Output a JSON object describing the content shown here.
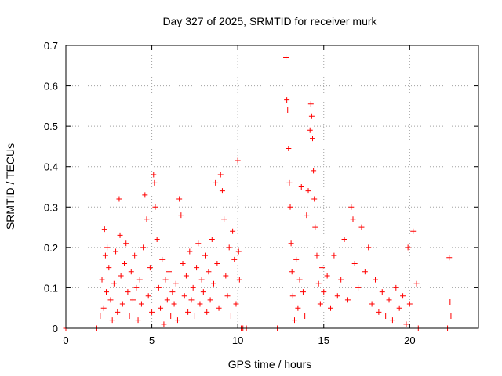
{
  "chart_data": {
    "type": "scatter",
    "title": "Day 327 of 2025, SRMTID for receiver murk",
    "xlabel": "GPS time / hours",
    "ylabel": "SRMTID / TECUs",
    "xlim": [
      0,
      24
    ],
    "ylim": [
      0,
      0.7
    ],
    "xticks": [
      0,
      5,
      10,
      15,
      20
    ],
    "yticks": [
      0,
      0.1,
      0.2,
      0.3,
      0.4,
      0.5,
      0.6,
      0.7
    ],
    "xtick_labels": [
      "0",
      "5",
      "10",
      "15",
      "20"
    ],
    "ytick_labels": [
      "0",
      "0.1",
      "0.2",
      "0.3",
      "0.4",
      "0.5",
      "0.6",
      "0.7"
    ],
    "grid": true,
    "marker": "+",
    "color": "#ff0000",
    "series": [
      {
        "name": "SRMTID",
        "points": [
          [
            0.0,
            0.0
          ],
          [
            1.8,
            0.0
          ],
          [
            2.0,
            0.03
          ],
          [
            2.1,
            0.12
          ],
          [
            2.2,
            0.05
          ],
          [
            2.25,
            0.245
          ],
          [
            2.3,
            0.18
          ],
          [
            2.35,
            0.09
          ],
          [
            2.4,
            0.2
          ],
          [
            2.5,
            0.15
          ],
          [
            2.6,
            0.07
          ],
          [
            2.7,
            0.02
          ],
          [
            2.8,
            0.11
          ],
          [
            2.9,
            0.19
          ],
          [
            3.0,
            0.04
          ],
          [
            3.1,
            0.32
          ],
          [
            3.15,
            0.23
          ],
          [
            3.2,
            0.13
          ],
          [
            3.3,
            0.06
          ],
          [
            3.4,
            0.16
          ],
          [
            3.5,
            0.21
          ],
          [
            3.6,
            0.09
          ],
          [
            3.7,
            0.03
          ],
          [
            3.8,
            0.14
          ],
          [
            3.9,
            0.07
          ],
          [
            4.0,
            0.18
          ],
          [
            4.1,
            0.1
          ],
          [
            4.2,
            0.02
          ],
          [
            4.3,
            0.12
          ],
          [
            4.4,
            0.06
          ],
          [
            4.5,
            0.2
          ],
          [
            4.6,
            0.33
          ],
          [
            4.7,
            0.27
          ],
          [
            4.8,
            0.08
          ],
          [
            4.9,
            0.15
          ],
          [
            5.0,
            0.04
          ],
          [
            5.1,
            0.38
          ],
          [
            5.15,
            0.36
          ],
          [
            5.2,
            0.3
          ],
          [
            5.3,
            0.22
          ],
          [
            5.4,
            0.1
          ],
          [
            5.5,
            0.05
          ],
          [
            5.6,
            0.17
          ],
          [
            5.7,
            0.01
          ],
          [
            5.8,
            0.12
          ],
          [
            5.9,
            0.07
          ],
          [
            6.0,
            0.14
          ],
          [
            6.1,
            0.03
          ],
          [
            6.2,
            0.09
          ],
          [
            6.3,
            0.06
          ],
          [
            6.4,
            0.11
          ],
          [
            6.5,
            0.02
          ],
          [
            6.6,
            0.32
          ],
          [
            6.7,
            0.28
          ],
          [
            6.8,
            0.16
          ],
          [
            6.9,
            0.08
          ],
          [
            7.0,
            0.13
          ],
          [
            7.1,
            0.04
          ],
          [
            7.2,
            0.19
          ],
          [
            7.3,
            0.07
          ],
          [
            7.4,
            0.1
          ],
          [
            7.5,
            0.03
          ],
          [
            7.6,
            0.15
          ],
          [
            7.7,
            0.21
          ],
          [
            7.8,
            0.06
          ],
          [
            7.9,
            0.12
          ],
          [
            8.0,
            0.09
          ],
          [
            8.1,
            0.18
          ],
          [
            8.2,
            0.04
          ],
          [
            8.3,
            0.14
          ],
          [
            8.4,
            0.07
          ],
          [
            8.5,
            0.22
          ],
          [
            8.6,
            0.11
          ],
          [
            8.7,
            0.36
          ],
          [
            8.8,
            0.16
          ],
          [
            8.9,
            0.05
          ],
          [
            9.0,
            0.38
          ],
          [
            9.1,
            0.34
          ],
          [
            9.2,
            0.27
          ],
          [
            9.3,
            0.13
          ],
          [
            9.4,
            0.08
          ],
          [
            9.5,
            0.2
          ],
          [
            9.6,
            0.03
          ],
          [
            9.7,
            0.24
          ],
          [
            9.8,
            0.17
          ],
          [
            9.9,
            0.06
          ],
          [
            10.0,
            0.415
          ],
          [
            10.05,
            0.19
          ],
          [
            10.1,
            0.12
          ],
          [
            10.2,
            0.0
          ],
          [
            10.3,
            0.0
          ],
          [
            10.5,
            0.0
          ],
          [
            12.3,
            0.0
          ],
          [
            12.8,
            0.67
          ],
          [
            12.85,
            0.565
          ],
          [
            12.9,
            0.54
          ],
          [
            12.95,
            0.445
          ],
          [
            13.0,
            0.36
          ],
          [
            13.05,
            0.3
          ],
          [
            13.1,
            0.21
          ],
          [
            13.15,
            0.14
          ],
          [
            13.2,
            0.08
          ],
          [
            13.3,
            0.02
          ],
          [
            13.4,
            0.17
          ],
          [
            13.5,
            0.05
          ],
          [
            13.6,
            0.12
          ],
          [
            13.7,
            0.35
          ],
          [
            13.8,
            0.09
          ],
          [
            13.9,
            0.03
          ],
          [
            14.0,
            0.28
          ],
          [
            14.1,
            0.34
          ],
          [
            14.2,
            0.49
          ],
          [
            14.25,
            0.555
          ],
          [
            14.3,
            0.525
          ],
          [
            14.35,
            0.47
          ],
          [
            14.4,
            0.39
          ],
          [
            14.45,
            0.32
          ],
          [
            14.5,
            0.25
          ],
          [
            14.6,
            0.18
          ],
          [
            14.7,
            0.11
          ],
          [
            14.8,
            0.06
          ],
          [
            14.9,
            0.15
          ],
          [
            15.0,
            0.09
          ],
          [
            15.2,
            0.13
          ],
          [
            15.4,
            0.05
          ],
          [
            15.6,
            0.18
          ],
          [
            15.8,
            0.08
          ],
          [
            16.0,
            0.12
          ],
          [
            16.2,
            0.22
          ],
          [
            16.4,
            0.07
          ],
          [
            16.6,
            0.3
          ],
          [
            16.7,
            0.27
          ],
          [
            16.8,
            0.16
          ],
          [
            17.0,
            0.1
          ],
          [
            17.2,
            0.25
          ],
          [
            17.4,
            0.14
          ],
          [
            17.6,
            0.2
          ],
          [
            17.8,
            0.06
          ],
          [
            18.0,
            0.12
          ],
          [
            18.2,
            0.04
          ],
          [
            18.4,
            0.09
          ],
          [
            18.6,
            0.03
          ],
          [
            18.8,
            0.07
          ],
          [
            19.0,
            0.02
          ],
          [
            19.2,
            0.1
          ],
          [
            19.4,
            0.05
          ],
          [
            19.6,
            0.08
          ],
          [
            19.8,
            0.01
          ],
          [
            19.9,
            0.2
          ],
          [
            20.0,
            0.06
          ],
          [
            20.2,
            0.24
          ],
          [
            20.4,
            0.11
          ],
          [
            20.5,
            0.0
          ],
          [
            22.2,
            0.0
          ],
          [
            22.3,
            0.175
          ],
          [
            22.35,
            0.065
          ],
          [
            22.4,
            0.03
          ]
        ]
      }
    ]
  }
}
